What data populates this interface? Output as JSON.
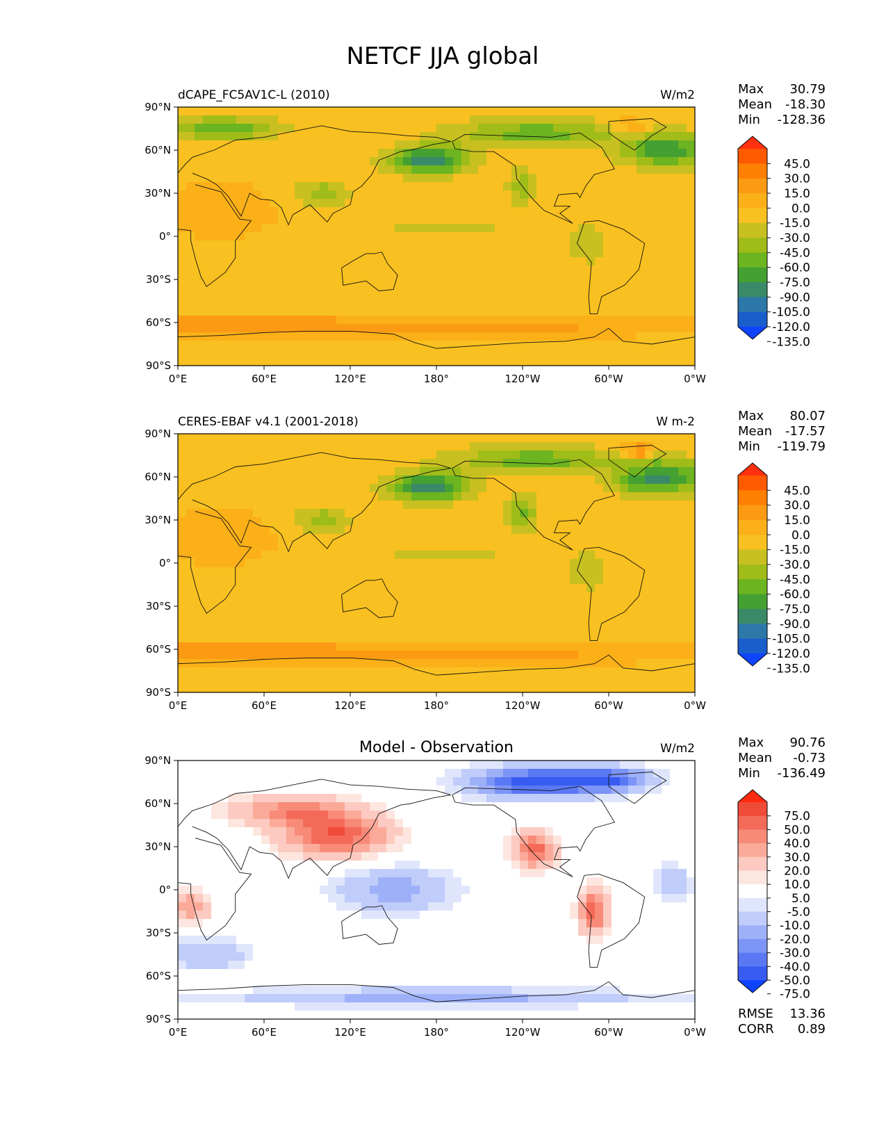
{
  "title": "NETCF JJA global",
  "lat_ticks": [
    "90°N",
    "60°N",
    "30°N",
    "0°",
    "30°S",
    "60°S",
    "90°S"
  ],
  "lon_ticks": [
    "0°E",
    "60°E",
    "120°E",
    "180°",
    "120°W",
    "60°W",
    "0°W"
  ],
  "panels": [
    {
      "left_title": "dCAPE_FC5AV1C-L (2010)",
      "center_title": "",
      "units": "W/m2",
      "stats": [
        {
          "label": "Max",
          "value": "30.79"
        },
        {
          "label": "Mean",
          "value": "-18.30"
        },
        {
          "label": "Min",
          "value": "-128.36"
        }
      ],
      "colorbar": {
        "levels": [
          "45.0",
          "30.0",
          "15.0",
          "0.0",
          "-15.0",
          "-30.0",
          "-45.0",
          "-60.0",
          "-75.0",
          "-90.0",
          "-105.0",
          "-120.0",
          "-135.0"
        ],
        "colors": [
          "#ff3010",
          "#ff5a00",
          "#ff8000",
          "#fc9a14",
          "#fbb018",
          "#f8c020",
          "#c8c020",
          "#a0bc18",
          "#6cb420",
          "#44a030",
          "#3a8a68",
          "#2c78a8",
          "#1a5ecc",
          "#0f44ff"
        ]
      },
      "map_style": "model"
    },
    {
      "left_title": "CERES-EBAF v4.1 (2001-2018)",
      "center_title": "",
      "units": "W m-2",
      "stats": [
        {
          "label": "Max",
          "value": "80.07"
        },
        {
          "label": "Mean",
          "value": "-17.57"
        },
        {
          "label": "Min",
          "value": "-119.79"
        }
      ],
      "colorbar": {
        "levels": [
          "45.0",
          "30.0",
          "15.0",
          "0.0",
          "-15.0",
          "-30.0",
          "-45.0",
          "-60.0",
          "-75.0",
          "-90.0",
          "-105.0",
          "-120.0",
          "-135.0"
        ],
        "colors": [
          "#ff3010",
          "#ff5a00",
          "#ff8000",
          "#fc9a14",
          "#fbb018",
          "#f8c020",
          "#c8c020",
          "#a0bc18",
          "#6cb420",
          "#44a030",
          "#3a8a68",
          "#2c78a8",
          "#1a5ecc",
          "#0f44ff"
        ]
      },
      "map_style": "obs"
    },
    {
      "left_title": "",
      "center_title": "Model - Observation",
      "units": "W/m2",
      "stats": [
        {
          "label": "Max",
          "value": "90.76"
        },
        {
          "label": "Mean",
          "value": "-0.73"
        },
        {
          "label": "Min",
          "value": "-136.49"
        }
      ],
      "colorbar": {
        "levels": [
          "75.0",
          "50.0",
          "40.0",
          "30.0",
          "20.0",
          "10.0",
          "5.0",
          "-5.0",
          "-10.0",
          "-20.0",
          "-30.0",
          "-40.0",
          "-50.0",
          "-75.0"
        ],
        "colors": [
          "#ff2a10",
          "#f04a38",
          "#f46a58",
          "#f88a78",
          "#fbaa9a",
          "#fccac0",
          "#fde6e0",
          "#ffffff",
          "#dfe6fc",
          "#c0ccfa",
          "#9eb0f8",
          "#7c94f6",
          "#5a78f4",
          "#385cf2",
          "#0f44ff"
        ]
      },
      "map_style": "diff",
      "extra_stats": [
        {
          "label": "RMSE",
          "value": "13.36"
        },
        {
          "label": "CORR",
          "value": "0.89"
        }
      ]
    }
  ]
}
